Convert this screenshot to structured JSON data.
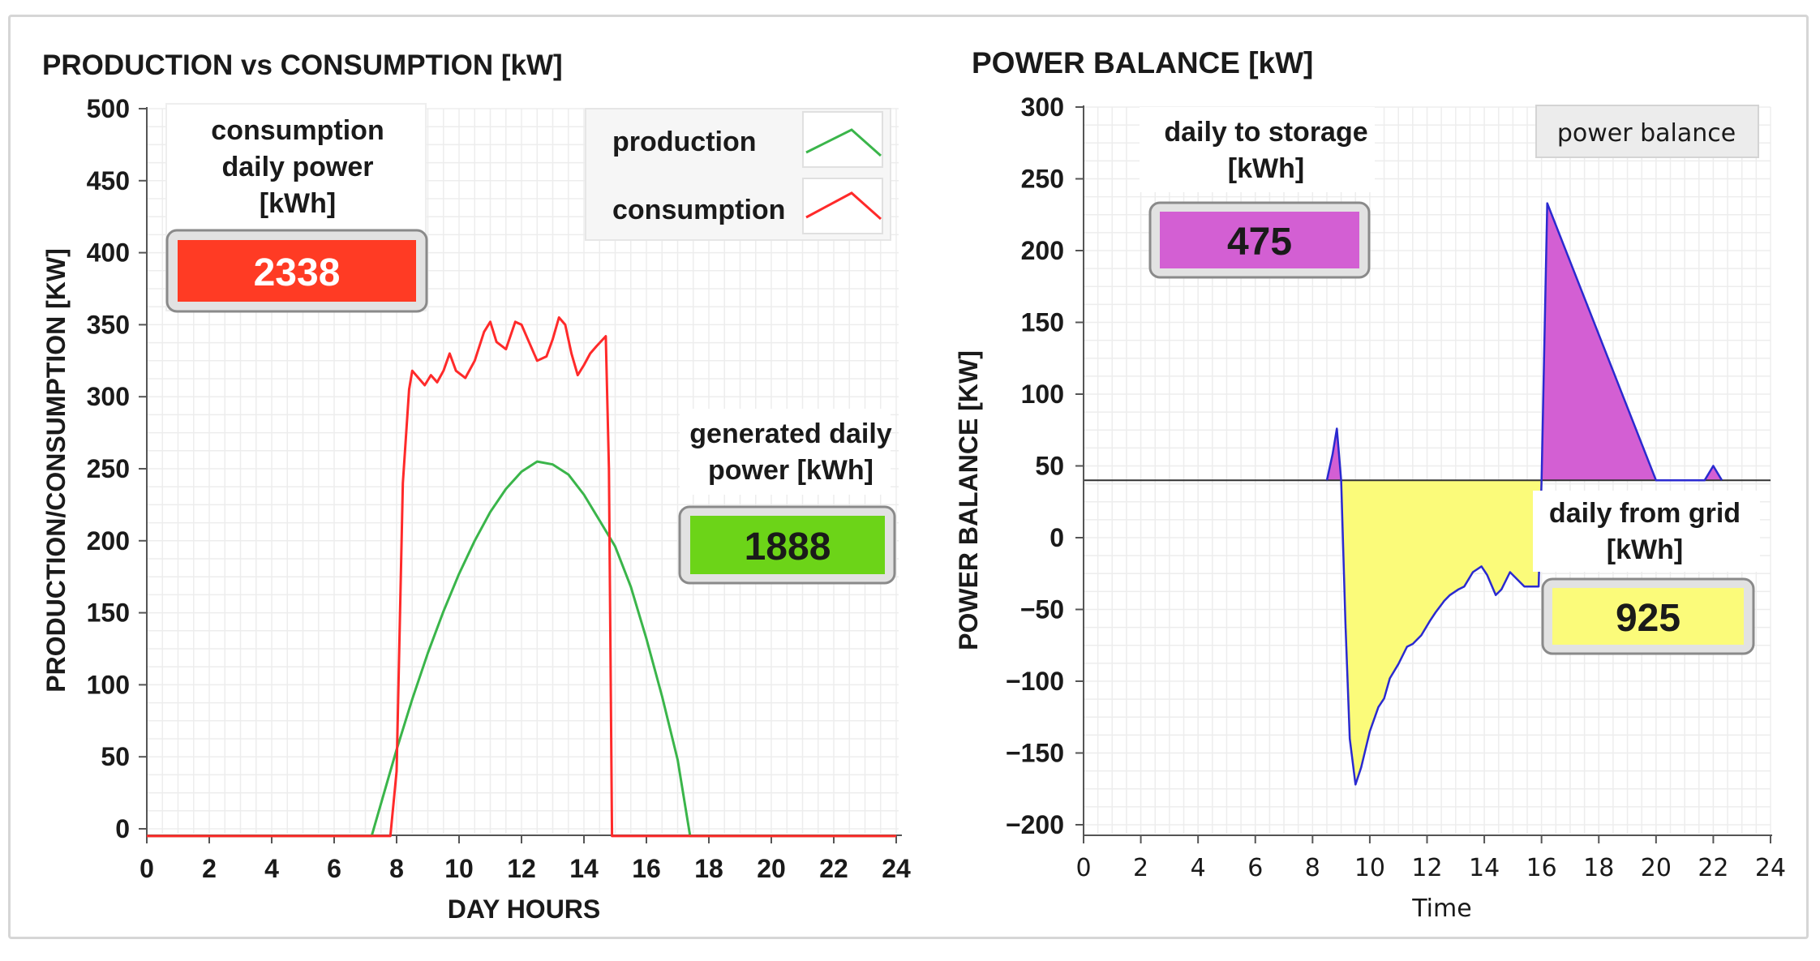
{
  "chart_data": [
    {
      "type": "line",
      "title": "PRODUCTION vs CONSUMPTION [kW]",
      "xlabel": "DAY HOURS",
      "ylabel": "PRODUCTION/CONSUMPTION [KW]",
      "xlim": [
        0,
        24
      ],
      "ylim": [
        0,
        500
      ],
      "xticks": [
        "0",
        "2",
        "4",
        "6",
        "8",
        "10",
        "12",
        "14",
        "16",
        "18",
        "20",
        "22",
        "24"
      ],
      "yticks": [
        "0",
        "50",
        "100",
        "150",
        "200",
        "250",
        "300",
        "350",
        "400",
        "450",
        "500"
      ],
      "grid": true,
      "legend": {
        "placement": "top-right",
        "entries": [
          {
            "label": "production",
            "color": "#3ab54a"
          },
          {
            "label": "consumption",
            "color": "#ff2a2a"
          }
        ]
      },
      "series": [
        {
          "name": "production",
          "color": "#3ab54a",
          "x": [
            0,
            7.2,
            7.6,
            8.0,
            8.5,
            9.0,
            9.5,
            10.0,
            10.5,
            11.0,
            11.5,
            12.0,
            12.5,
            13.0,
            13.5,
            14.0,
            14.5,
            15.0,
            15.5,
            16.0,
            16.5,
            17.0,
            17.4,
            18,
            24
          ],
          "y": [
            -5,
            -5,
            25,
            55,
            90,
            122,
            151,
            177,
            200,
            220,
            236,
            248,
            255,
            253,
            246,
            232,
            214,
            196,
            168,
            132,
            92,
            48,
            -5,
            -5,
            -5
          ]
        },
        {
          "name": "consumption",
          "color": "#ff2a2a",
          "x": [
            0,
            7.7,
            7.8,
            8.0,
            8.2,
            8.4,
            8.5,
            8.7,
            8.9,
            9.1,
            9.3,
            9.5,
            9.7,
            9.9,
            10.2,
            10.5,
            10.8,
            11.0,
            11.2,
            11.5,
            11.8,
            12.0,
            12.2,
            12.5,
            12.8,
            13.0,
            13.2,
            13.4,
            13.6,
            13.8,
            14.0,
            14.2,
            14.4,
            14.7,
            14.8,
            14.9,
            24
          ],
          "y": [
            -5,
            -5,
            -5,
            40,
            240,
            305,
            318,
            313,
            308,
            315,
            310,
            318,
            330,
            318,
            313,
            325,
            345,
            352,
            338,
            333,
            352,
            350,
            340,
            325,
            328,
            340,
            355,
            350,
            330,
            315,
            322,
            330,
            335,
            342,
            250,
            -5,
            -5
          ]
        }
      ],
      "annotations": [
        {
          "label": "consumption daily power [kWh]",
          "lines": [
            "consumption",
            "daily power",
            "[kWh]"
          ],
          "value": "2338",
          "color": "#ff3b24"
        },
        {
          "label": "generated daily power [kWh]",
          "lines": [
            "generated daily",
            "power [kWh]"
          ],
          "value": "1888",
          "color": "#6cd418"
        }
      ]
    },
    {
      "type": "area",
      "title": "POWER BALANCE [kW]",
      "xlabel": "Time",
      "ylabel": "POWER BALANCE [KW]",
      "xlim": [
        0,
        24
      ],
      "ylim": [
        -200,
        300
      ],
      "xticks": [
        "0",
        "2",
        "4",
        "6",
        "8",
        "10",
        "12",
        "14",
        "16",
        "18",
        "20",
        "22",
        "24"
      ],
      "yticks": [
        "300",
        "250",
        "200",
        "150",
        "100",
        "50",
        "0",
        "−50",
        "−100",
        "−150",
        "−200"
      ],
      "baseline": 40,
      "grid": true,
      "legend": {
        "placement": "top-right",
        "entries": [
          {
            "label": "power balance"
          }
        ]
      },
      "series": [
        {
          "name": "power balance",
          "line_color": "#2a2ad0",
          "positive_fill": "#d35fd3",
          "negative_fill": "#fbfb7a",
          "x": [
            0,
            8.5,
            8.7,
            8.85,
            9.0,
            9.15,
            9.3,
            9.5,
            9.7,
            10.0,
            10.3,
            10.5,
            10.7,
            11.0,
            11.3,
            11.5,
            11.8,
            12.1,
            12.3,
            12.6,
            12.8,
            13.1,
            13.3,
            13.6,
            13.9,
            14.1,
            14.4,
            14.6,
            14.9,
            15.1,
            15.4,
            15.6,
            15.9,
            16.0,
            16.2,
            20.0,
            21.7,
            22.0,
            22.3,
            24
          ],
          "y": [
            40,
            40,
            58,
            76,
            40,
            -60,
            -140,
            -172,
            -160,
            -135,
            -118,
            -112,
            -98,
            -88,
            -76,
            -74,
            -68,
            -58,
            -52,
            -44,
            -40,
            -36,
            -34,
            -24,
            -20,
            -26,
            -40,
            -36,
            -24,
            -28,
            -34,
            -34,
            -34,
            40,
            233,
            40,
            40,
            50,
            40,
            40
          ]
        }
      ],
      "annotations": [
        {
          "label": "daily to storage [kWh]",
          "lines": [
            "daily to storage",
            "[kWh]"
          ],
          "value": "475",
          "color": "#d35fd3"
        },
        {
          "label": "daily from grid [kWh]",
          "lines": [
            "daily from grid",
            "[kWh]"
          ],
          "value": "925",
          "color": "#fbfb7a"
        }
      ]
    }
  ]
}
